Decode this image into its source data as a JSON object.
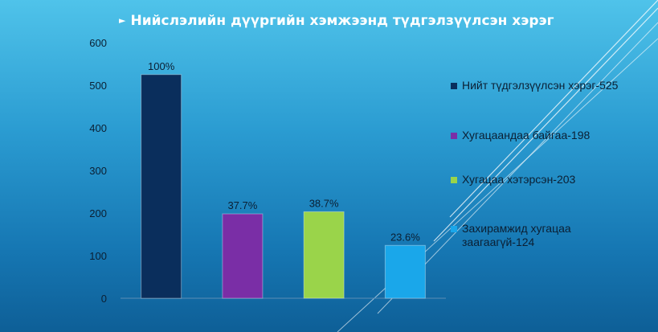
{
  "title": "Нийслэлийн дүүргийн хэмжээнд түдгэлзүүлсэн хэрэг",
  "chart_data": {
    "type": "bar",
    "ylim": [
      0,
      600
    ],
    "yticks": [
      0,
      100,
      200,
      300,
      400,
      500,
      600
    ],
    "grid": false,
    "legend_position": "right",
    "bars": [
      {
        "legend": "Нийт түдгэлзүүлсэн хэрэг-525",
        "value": 525,
        "label": "100%",
        "color": "#0a2e5c"
      },
      {
        "legend": "Хугацаандаа байгаа-198",
        "value": 198,
        "label": "37.7%",
        "color": "#7a2ea6"
      },
      {
        "legend": "Хугацаа хэтэрсэн-203",
        "value": 203,
        "label": "38.7%",
        "color": "#9ad44a"
      },
      {
        "legend": "Захирамжид хугацаа заагаагүй-124",
        "value": 124,
        "label": "23.6%",
        "color": "#1aa7ea"
      }
    ]
  }
}
